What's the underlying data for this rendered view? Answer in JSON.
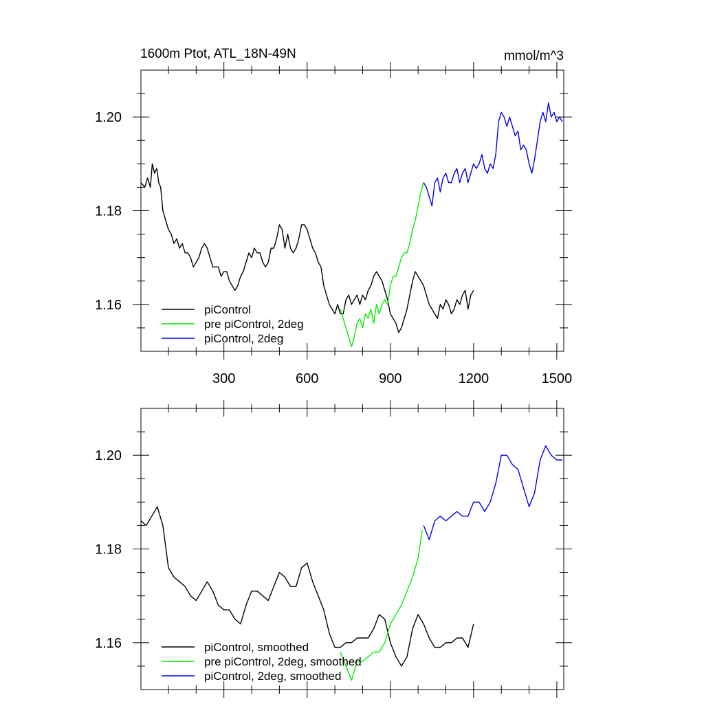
{
  "figure": {
    "title_left": "1600m Ptot, ATL_18N-49N",
    "title_right": "mmol/m^3"
  },
  "chart_data": [
    {
      "type": "line",
      "title": "1600m Ptot, ATL_18N-49N",
      "unit_label": "mmol/m^3",
      "xlim": [
        1,
        1525
      ],
      "ylim": [
        1.15,
        1.21
      ],
      "x_ticks": [
        300,
        600,
        900,
        1200,
        1500
      ],
      "x_tick_labels": [
        "300",
        "600",
        "900",
        "1200",
        "1500"
      ],
      "y_ticks": [
        1.16,
        1.18,
        1.2
      ],
      "y_tick_labels": [
        "1.16",
        "1.18",
        "1.20"
      ],
      "legend_placement": "bottom-left",
      "series": [
        {
          "name": "piControl",
          "color": "#000000",
          "x": [
            1,
            15,
            25,
            35,
            42,
            50,
            58,
            65,
            72,
            80,
            90,
            100,
            110,
            120,
            130,
            140,
            150,
            160,
            170,
            180,
            190,
            200,
            210,
            220,
            230,
            240,
            250,
            260,
            270,
            280,
            290,
            300,
            310,
            320,
            330,
            340,
            350,
            360,
            370,
            380,
            390,
            400,
            410,
            420,
            430,
            440,
            450,
            460,
            470,
            480,
            490,
            500,
            510,
            520,
            530,
            540,
            550,
            560,
            570,
            580,
            590,
            600,
            610,
            620,
            630,
            640,
            650,
            660,
            670,
            680,
            690,
            700,
            710,
            720,
            730,
            740,
            750,
            760,
            770,
            780,
            790,
            800,
            810,
            820,
            830,
            840,
            850,
            860,
            870,
            880,
            890,
            900,
            910,
            920,
            930,
            940,
            950,
            960,
            970,
            980,
            990,
            1000,
            1010,
            1020,
            1030,
            1040,
            1050,
            1060,
            1070,
            1080,
            1090,
            1100,
            1110,
            1120,
            1130,
            1140,
            1150,
            1160,
            1170,
            1180,
            1190,
            1200
          ],
          "y": [
            1.186,
            1.185,
            1.187,
            1.185,
            1.19,
            1.188,
            1.189,
            1.186,
            1.185,
            1.18,
            1.178,
            1.176,
            1.175,
            1.173,
            1.174,
            1.172,
            1.173,
            1.171,
            1.171,
            1.17,
            1.168,
            1.169,
            1.17,
            1.172,
            1.173,
            1.172,
            1.17,
            1.168,
            1.168,
            1.168,
            1.166,
            1.167,
            1.167,
            1.165,
            1.164,
            1.163,
            1.164,
            1.166,
            1.167,
            1.169,
            1.171,
            1.17,
            1.172,
            1.171,
            1.171,
            1.169,
            1.168,
            1.169,
            1.172,
            1.172,
            1.174,
            1.177,
            1.176,
            1.172,
            1.175,
            1.172,
            1.171,
            1.172,
            1.174,
            1.177,
            1.177,
            1.176,
            1.174,
            1.172,
            1.171,
            1.169,
            1.168,
            1.164,
            1.162,
            1.16,
            1.159,
            1.158,
            1.16,
            1.158,
            1.158,
            1.161,
            1.162,
            1.16,
            1.161,
            1.162,
            1.16,
            1.162,
            1.161,
            1.163,
            1.164,
            1.166,
            1.167,
            1.166,
            1.165,
            1.163,
            1.161,
            1.158,
            1.157,
            1.156,
            1.154,
            1.155,
            1.157,
            1.159,
            1.162,
            1.165,
            1.167,
            1.166,
            1.165,
            1.164,
            1.162,
            1.16,
            1.159,
            1.158,
            1.157,
            1.16,
            1.159,
            1.161,
            1.16,
            1.158,
            1.159,
            1.161,
            1.16,
            1.162,
            1.163,
            1.159,
            1.162,
            1.163
          ]
        },
        {
          "name": "pre piControl, 2deg",
          "color": "#00ee00",
          "x": [
            720,
            730,
            740,
            750,
            760,
            770,
            780,
            790,
            800,
            810,
            820,
            830,
            840,
            850,
            860,
            870,
            880,
            890,
            900,
            910,
            920,
            930,
            940,
            950,
            960,
            970,
            980,
            990,
            1000,
            1010,
            1020
          ],
          "y": [
            1.159,
            1.157,
            1.155,
            1.153,
            1.151,
            1.153,
            1.156,
            1.157,
            1.155,
            1.158,
            1.157,
            1.159,
            1.156,
            1.16,
            1.158,
            1.16,
            1.161,
            1.16,
            1.164,
            1.166,
            1.166,
            1.168,
            1.17,
            1.171,
            1.171,
            1.173,
            1.176,
            1.178,
            1.181,
            1.184,
            1.186
          ]
        },
        {
          "name": "piControl, 2deg",
          "color": "#0000ee",
          "x": [
            1020,
            1030,
            1040,
            1050,
            1060,
            1070,
            1080,
            1090,
            1100,
            1110,
            1120,
            1130,
            1140,
            1150,
            1160,
            1170,
            1180,
            1190,
            1200,
            1210,
            1220,
            1230,
            1240,
            1250,
            1260,
            1270,
            1280,
            1290,
            1300,
            1310,
            1320,
            1330,
            1340,
            1350,
            1360,
            1370,
            1380,
            1390,
            1400,
            1410,
            1420,
            1430,
            1440,
            1450,
            1460,
            1470,
            1480,
            1490,
            1500,
            1510,
            1520
          ],
          "y": [
            1.186,
            1.185,
            1.183,
            1.181,
            1.186,
            1.187,
            1.184,
            1.187,
            1.188,
            1.186,
            1.186,
            1.188,
            1.189,
            1.186,
            1.188,
            1.189,
            1.186,
            1.188,
            1.19,
            1.189,
            1.19,
            1.192,
            1.189,
            1.188,
            1.19,
            1.189,
            1.192,
            1.199,
            1.201,
            1.2,
            1.198,
            1.2,
            1.198,
            1.196,
            1.197,
            1.193,
            1.194,
            1.193,
            1.19,
            1.188,
            1.191,
            1.195,
            1.199,
            1.201,
            1.199,
            1.203,
            1.2,
            1.201,
            1.199,
            1.2,
            1.199
          ]
        }
      ]
    },
    {
      "type": "line",
      "xlim": [
        1,
        1525
      ],
      "ylim": [
        1.15,
        1.21
      ],
      "x_ticks": [
        300,
        600,
        900,
        1200,
        1500
      ],
      "y_ticks": [
        1.16,
        1.18,
        1.2
      ],
      "y_tick_labels": [
        "1.16",
        "1.18",
        "1.20"
      ],
      "legend_placement": "bottom-left",
      "series": [
        {
          "name": "piControl, smoothed",
          "color": "#000000",
          "x": [
            1,
            20,
            40,
            60,
            80,
            100,
            120,
            140,
            160,
            180,
            200,
            220,
            240,
            260,
            280,
            300,
            320,
            340,
            360,
            380,
            400,
            420,
            440,
            460,
            480,
            500,
            520,
            540,
            560,
            580,
            600,
            620,
            640,
            660,
            680,
            700,
            720,
            740,
            760,
            780,
            800,
            820,
            840,
            860,
            880,
            900,
            920,
            940,
            960,
            980,
            1000,
            1020,
            1040,
            1060,
            1080,
            1100,
            1120,
            1140,
            1160,
            1180,
            1200
          ],
          "y": [
            1.186,
            1.185,
            1.187,
            1.189,
            1.185,
            1.176,
            1.174,
            1.173,
            1.172,
            1.17,
            1.169,
            1.171,
            1.173,
            1.171,
            1.168,
            1.167,
            1.167,
            1.165,
            1.164,
            1.168,
            1.171,
            1.171,
            1.17,
            1.169,
            1.172,
            1.175,
            1.174,
            1.172,
            1.172,
            1.176,
            1.177,
            1.173,
            1.17,
            1.167,
            1.162,
            1.159,
            1.159,
            1.16,
            1.16,
            1.161,
            1.161,
            1.161,
            1.163,
            1.166,
            1.165,
            1.16,
            1.157,
            1.155,
            1.157,
            1.163,
            1.166,
            1.164,
            1.161,
            1.159,
            1.159,
            1.16,
            1.16,
            1.161,
            1.161,
            1.159,
            1.164
          ]
        },
        {
          "name": "pre piControl, 2deg, smoothed",
          "color": "#00ee00",
          "x": [
            720,
            740,
            760,
            780,
            800,
            820,
            840,
            860,
            880,
            900,
            920,
            940,
            960,
            980,
            1000,
            1015
          ],
          "y": [
            1.158,
            1.155,
            1.152,
            1.156,
            1.156,
            1.157,
            1.158,
            1.158,
            1.16,
            1.164,
            1.166,
            1.168,
            1.171,
            1.174,
            1.178,
            1.184
          ]
        },
        {
          "name": "piControl, 2deg, smoothed",
          "color": "#0000ee",
          "x": [
            1020,
            1040,
            1060,
            1080,
            1100,
            1120,
            1140,
            1160,
            1180,
            1200,
            1220,
            1240,
            1260,
            1280,
            1300,
            1320,
            1340,
            1360,
            1380,
            1400,
            1420,
            1440,
            1460,
            1480,
            1500,
            1520
          ],
          "y": [
            1.185,
            1.182,
            1.186,
            1.187,
            1.186,
            1.187,
            1.188,
            1.187,
            1.187,
            1.19,
            1.19,
            1.188,
            1.19,
            1.194,
            1.2,
            1.2,
            1.198,
            1.197,
            1.193,
            1.189,
            1.192,
            1.199,
            1.202,
            1.2,
            1.199,
            1.199
          ]
        }
      ]
    }
  ]
}
